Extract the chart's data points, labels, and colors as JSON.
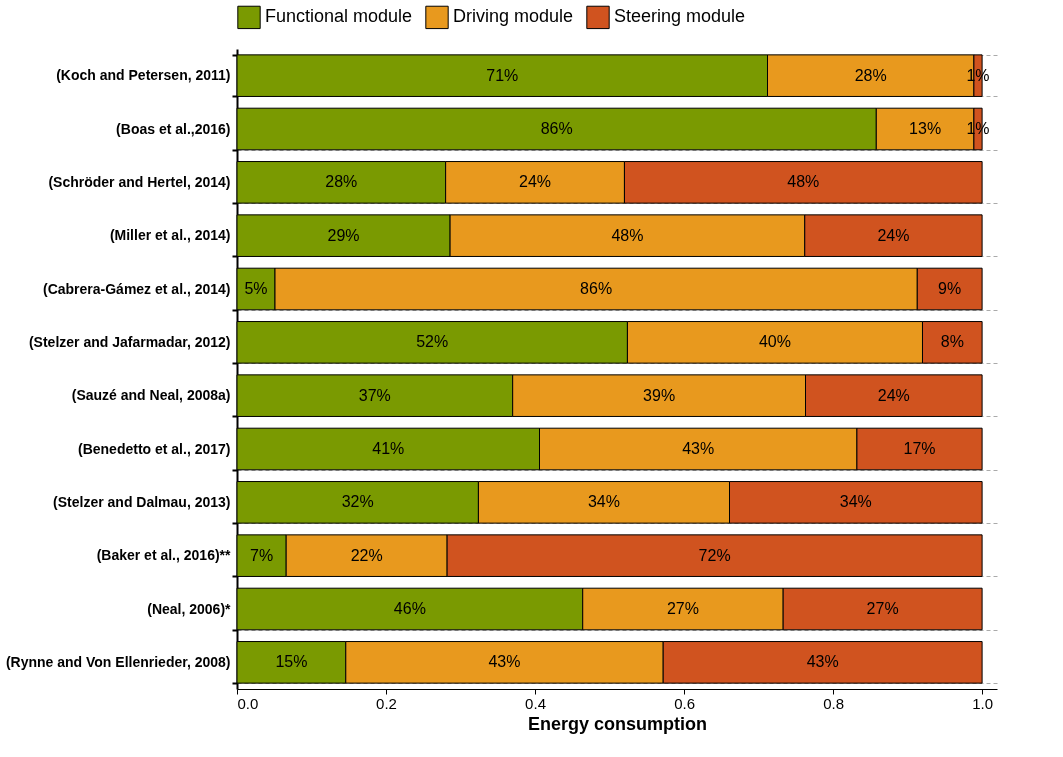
{
  "chart_data": {
    "type": "bar",
    "orientation": "horizontal",
    "stacked": true,
    "xlabel": "Energy consumption",
    "categories": [
      "(Koch and Petersen, 2011)",
      "(Boas et al.,2016)",
      "(Schröder and Hertel, 2014)",
      "(Miller et al., 2014)",
      "(Cabrera-Gámez et al., 2014)",
      "(Stelzer and Jafarmadar, 2012)",
      "(Sauzé and Neal, 2008a)",
      "(Benedetto et al., 2017)",
      "(Stelzer and Dalmau, 2013)",
      "(Baker et al., 2016)**",
      "(Neal, 2006)*",
      "(Rynne and Von Ellenrieder, 2008)"
    ],
    "series": [
      {
        "name": "Functional module",
        "color": "#7a9a01",
        "values": [
          0.712,
          0.858,
          0.28,
          0.286,
          0.051,
          0.524,
          0.37,
          0.406,
          0.324,
          0.066,
          0.464,
          0.146
        ],
        "value_labels": [
          "71%",
          "86%",
          "28%",
          "29%",
          "5%",
          "52%",
          "37%",
          "41%",
          "32%",
          "7%",
          "46%",
          "15%"
        ]
      },
      {
        "name": "Driving module",
        "color": "#e8991e",
        "values": [
          0.277,
          0.131,
          0.24,
          0.476,
          0.862,
          0.396,
          0.393,
          0.426,
          0.337,
          0.216,
          0.269,
          0.426
        ],
        "value_labels": [
          "28%",
          "13%",
          "24%",
          "48%",
          "86%",
          "40%",
          "39%",
          "43%",
          "34%",
          "22%",
          "27%",
          "43%"
        ]
      },
      {
        "name": "Steering module",
        "color": "#d0531f",
        "values": [
          0.011,
          0.011,
          0.48,
          0.238,
          0.087,
          0.08,
          0.237,
          0.168,
          0.339,
          0.718,
          0.267,
          0.428
        ],
        "value_labels": [
          "1%",
          "1%",
          "48%",
          "24%",
          "9%",
          "8%",
          "24%",
          "17%",
          "34%",
          "72%",
          "27%",
          "43%"
        ]
      }
    ],
    "xlim": [
      0,
      1.02
    ],
    "xticks": [
      {
        "value": 0,
        "label": "0.0"
      },
      {
        "value": 0.2,
        "label": "0.2"
      },
      {
        "value": 0.4,
        "label": "0.4"
      },
      {
        "value": 0.6,
        "label": "0.6"
      },
      {
        "value": 0.8,
        "label": "0.8"
      },
      {
        "value": 1,
        "label": "1.0"
      }
    ],
    "grid": "y",
    "legend": "top"
  }
}
